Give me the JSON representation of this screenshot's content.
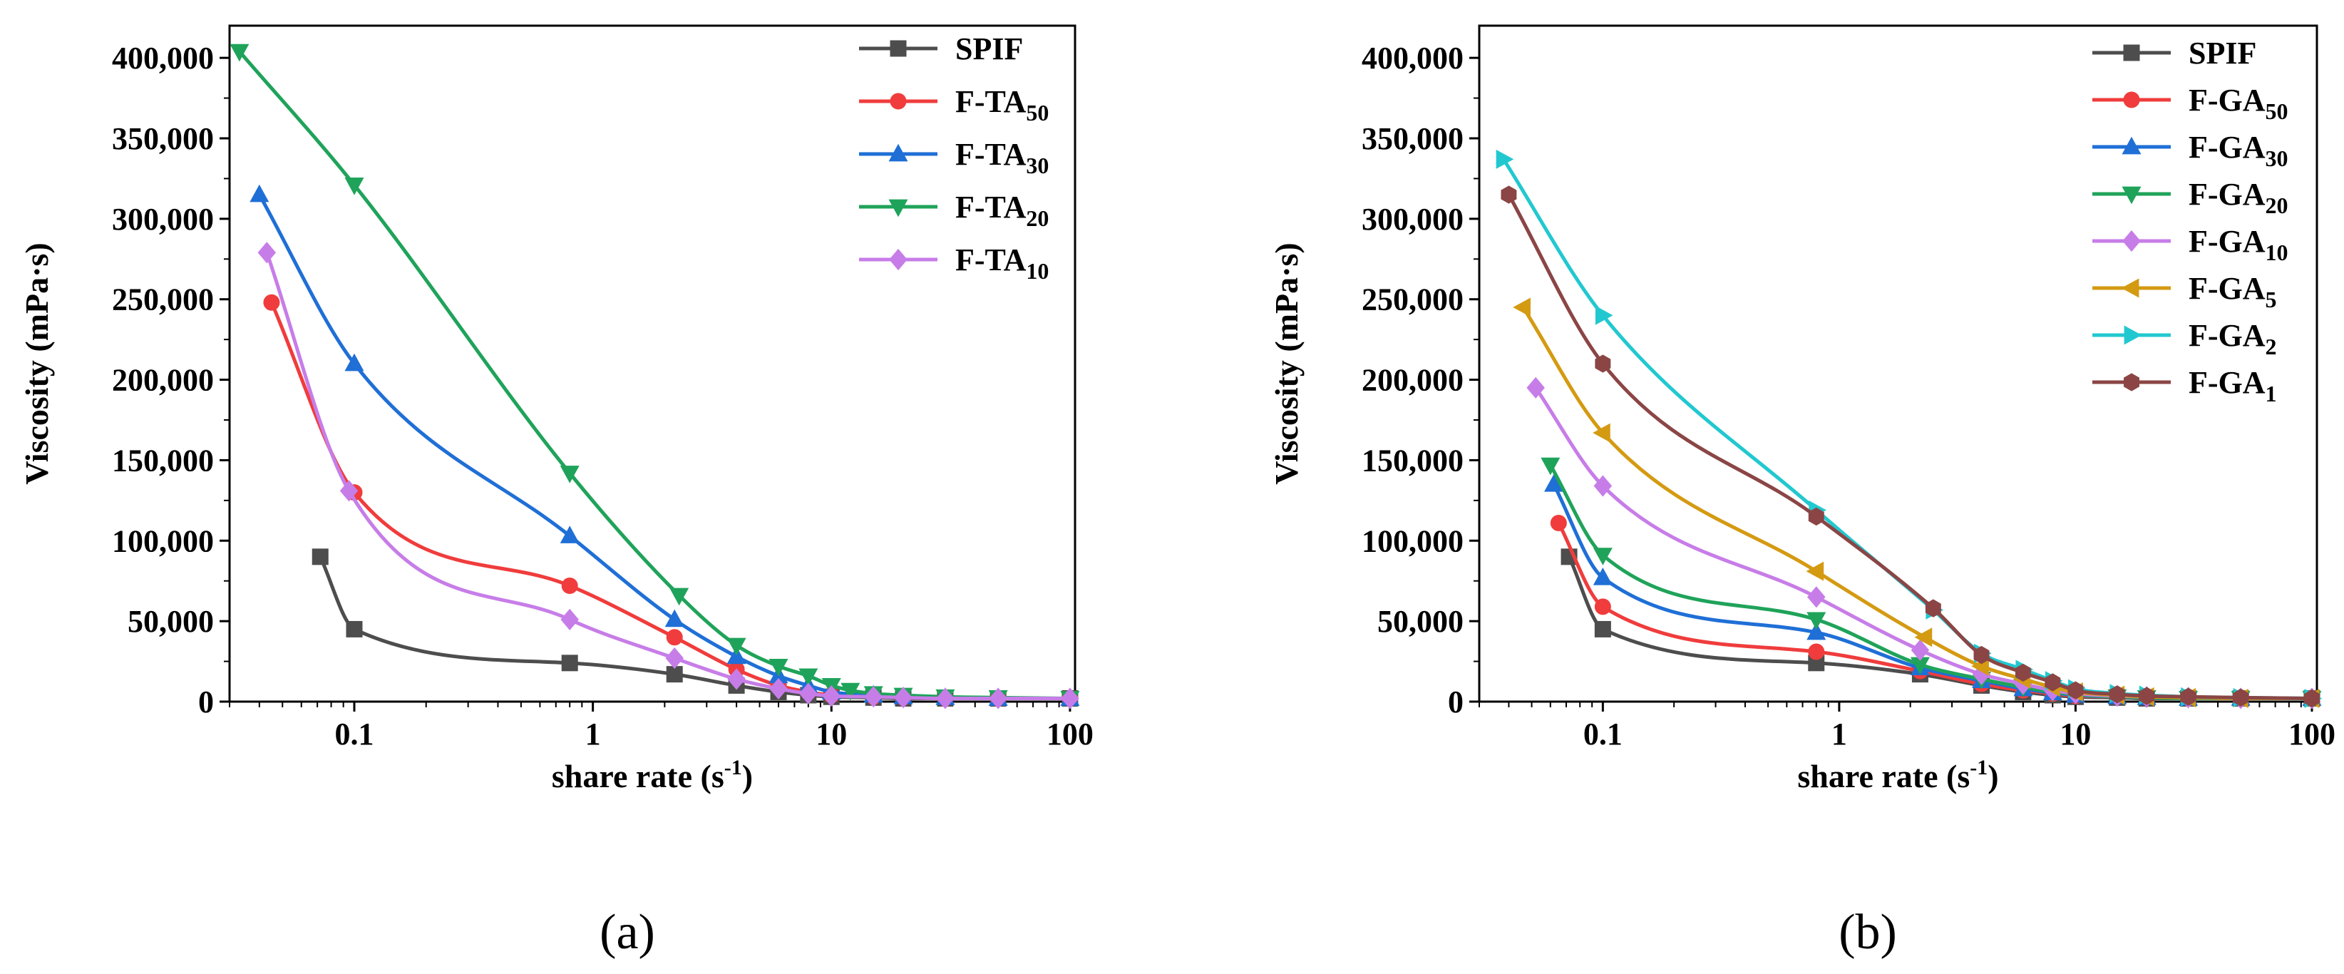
{
  "chart_data": [
    {
      "panel_label": "(a)",
      "type": "line",
      "xscale": "log",
      "xlabel": "share rate (s",
      "xlabel_sup": "-1",
      "xlabel_tail": ")",
      "ylabel": "Viscosity (mPa·s)",
      "xlim": [
        0.03,
        105
      ],
      "ylim": [
        0,
        420000
      ],
      "x_ticks": [
        0.1,
        1,
        10,
        100
      ],
      "x_tick_labels": [
        "0.1",
        "1",
        "10",
        "100"
      ],
      "y_ticks": [
        0,
        50000,
        100000,
        150000,
        200000,
        250000,
        300000,
        350000,
        400000
      ],
      "y_tick_labels": [
        "0",
        "50,000",
        "100,000",
        "150,000",
        "200,000",
        "250,000",
        "300,000",
        "350,000",
        "400,000"
      ],
      "legend_position": "top-right",
      "series": [
        {
          "name": "SPIF",
          "sub": "",
          "color": "#4d4d4d",
          "marker": "square",
          "x": [
            0.072,
            0.1,
            0.8,
            2.2,
            4,
            6,
            8,
            10,
            15,
            20,
            30,
            50,
            100
          ],
          "y": [
            90000,
            45000,
            24000,
            17000,
            10000,
            6000,
            4000,
            3000,
            2500,
            2000,
            2000,
            2000,
            2000
          ]
        },
        {
          "name": "F-TA",
          "sub": "50",
          "color": "#f03c3c",
          "marker": "circle",
          "x": [
            0.045,
            0.1,
            0.8,
            2.2,
            4,
            6,
            8,
            10,
            15,
            20,
            30,
            50,
            100
          ],
          "y": [
            248000,
            130000,
            72000,
            40000,
            20000,
            10000,
            6000,
            4000,
            3000,
            2500,
            2000,
            2000,
            2000
          ]
        },
        {
          "name": "F-TA",
          "sub": "30",
          "color": "#1f6fd6",
          "marker": "triangle-up",
          "x": [
            0.04,
            0.1,
            0.8,
            2.2,
            4,
            6,
            8,
            10,
            15,
            20,
            30,
            50,
            100
          ],
          "y": [
            315000,
            210000,
            103000,
            51000,
            28000,
            16000,
            10000,
            6000,
            4000,
            3000,
            2500,
            2000,
            2000
          ]
        },
        {
          "name": "F-TA",
          "sub": "20",
          "color": "#1fa35a",
          "marker": "triangle-down",
          "x": [
            0.033,
            0.1,
            0.8,
            2.3,
            4,
            6,
            8,
            10,
            12,
            15,
            20,
            30,
            50,
            100
          ],
          "y": [
            404000,
            321000,
            142000,
            66000,
            35000,
            22000,
            16000,
            10000,
            7000,
            5000,
            4000,
            3000,
            2500,
            2000
          ]
        },
        {
          "name": "F-TA",
          "sub": "10",
          "color": "#c77de8",
          "marker": "diamond",
          "x": [
            0.043,
            0.095,
            0.8,
            2.2,
            4,
            6,
            8,
            10,
            15,
            20,
            30,
            50,
            100
          ],
          "y": [
            279000,
            131000,
            51000,
            27000,
            14000,
            8000,
            5000,
            3500,
            3000,
            2500,
            2000,
            2000,
            2000
          ]
        }
      ]
    },
    {
      "panel_label": "(b)",
      "type": "line",
      "xscale": "log",
      "xlabel": "share rate (s",
      "xlabel_sup": "-1",
      "xlabel_tail": ")",
      "ylabel": "Viscosity (mPa·s)",
      "xlim": [
        0.03,
        105
      ],
      "ylim": [
        0,
        420000
      ],
      "x_ticks": [
        0.1,
        1,
        10,
        100
      ],
      "x_tick_labels": [
        "0.1",
        "1",
        "10",
        "100"
      ],
      "y_ticks": [
        0,
        50000,
        100000,
        150000,
        200000,
        250000,
        300000,
        350000,
        400000
      ],
      "y_tick_labels": [
        "0",
        "50,000",
        "100,000",
        "150,000",
        "200,000",
        "250,000",
        "300,000",
        "350,000",
        "400,000"
      ],
      "legend_position": "top-right",
      "series": [
        {
          "name": "SPIF",
          "sub": "",
          "color": "#4d4d4d",
          "marker": "square",
          "x": [
            0.072,
            0.1,
            0.8,
            2.2,
            4,
            6,
            8,
            10,
            15,
            20,
            30,
            50,
            100
          ],
          "y": [
            90000,
            45000,
            24000,
            17000,
            10000,
            6000,
            4000,
            3000,
            2500,
            2000,
            2000,
            2000,
            2000
          ]
        },
        {
          "name": "F-GA",
          "sub": "50",
          "color": "#f03c3c",
          "marker": "circle",
          "x": [
            0.065,
            0.1,
            0.8,
            2.2,
            4,
            6,
            8,
            10,
            15,
            20,
            30,
            50,
            100
          ],
          "y": [
            111000,
            59000,
            31000,
            19000,
            11000,
            7000,
            5000,
            3500,
            3000,
            2500,
            2000,
            2000,
            2000
          ]
        },
        {
          "name": "F-GA",
          "sub": "30",
          "color": "#1f6fd6",
          "marker": "triangle-up",
          "x": [
            0.062,
            0.1,
            0.8,
            2.2,
            4,
            6,
            8,
            10,
            15,
            20,
            30,
            50,
            100
          ],
          "y": [
            135000,
            77000,
            43000,
            21000,
            13000,
            8000,
            5500,
            4000,
            3000,
            2500,
            2000,
            2000,
            2000
          ]
        },
        {
          "name": "F-GA",
          "sub": "20",
          "color": "#1fa35a",
          "marker": "triangle-down",
          "x": [
            0.06,
            0.1,
            0.8,
            2.2,
            4,
            6,
            8,
            10,
            15,
            20,
            30,
            50,
            100
          ],
          "y": [
            147000,
            91000,
            51000,
            23000,
            14000,
            9000,
            6000,
            4500,
            3000,
            2500,
            2000,
            2000,
            2000
          ]
        },
        {
          "name": "F-GA",
          "sub": "10",
          "color": "#c77de8",
          "marker": "diamond",
          "x": [
            0.052,
            0.1,
            0.8,
            2.2,
            4,
            6,
            8,
            10,
            15,
            20,
            30,
            50,
            100
          ],
          "y": [
            195000,
            134000,
            65000,
            32000,
            17000,
            11000,
            7000,
            5000,
            3500,
            3000,
            2500,
            2000,
            2000
          ]
        },
        {
          "name": "F-GA",
          "sub": "5",
          "color": "#d49a12",
          "marker": "triangle-left",
          "x": [
            0.046,
            0.1,
            0.8,
            2.3,
            4,
            6,
            8,
            10,
            15,
            20,
            30,
            50,
            100
          ],
          "y": [
            245000,
            167000,
            81000,
            40000,
            22000,
            14000,
            9000,
            6000,
            4000,
            3000,
            2500,
            2000,
            2000
          ]
        },
        {
          "name": "F-GA",
          "sub": "2",
          "color": "#22c8d0",
          "marker": "triangle-right",
          "x": [
            0.038,
            0.1,
            0.8,
            2.5,
            4,
            6,
            8,
            10,
            15,
            20,
            30,
            50,
            100
          ],
          "y": [
            337000,
            240000,
            119000,
            57000,
            30000,
            20000,
            13000,
            8000,
            5000,
            4000,
            3000,
            2500,
            2000
          ]
        },
        {
          "name": "F-GA",
          "sub": "1",
          "color": "#8b4545",
          "marker": "hexagon",
          "x": [
            0.04,
            0.1,
            0.8,
            2.5,
            4,
            6,
            8,
            10,
            15,
            20,
            30,
            50,
            100
          ],
          "y": [
            315000,
            210000,
            115000,
            58000,
            29000,
            18000,
            12000,
            7000,
            4500,
            3500,
            3000,
            2500,
            2000
          ]
        }
      ]
    }
  ]
}
